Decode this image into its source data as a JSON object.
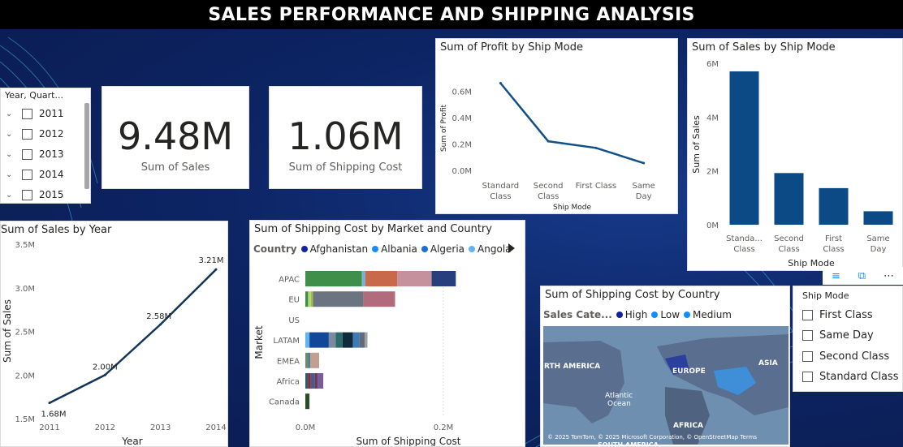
{
  "title": "SALES PERFORMANCE AND SHIPPING ANALYSIS",
  "year_slicer": {
    "header": "Year, Quart...",
    "items": [
      "2011",
      "2012",
      "2013",
      "2014",
      "2015"
    ]
  },
  "kpis": [
    {
      "value": "9.48M",
      "label": "Sum of Sales"
    },
    {
      "value": "1.06M",
      "label": "Sum of Shipping Cost"
    }
  ],
  "ship_mode_slicer": {
    "header": "Ship Mode",
    "items": [
      "First Class",
      "Same Day",
      "Second Class",
      "Standard Class"
    ]
  },
  "map": {
    "title": "Sum of Shipping Cost by Country",
    "legend_title": "Sales Cate...",
    "legend": [
      {
        "name": "High",
        "color": "#12239e"
      },
      {
        "name": "Low",
        "color": "#118dff"
      },
      {
        "name": "Medium",
        "color": "#118dff"
      }
    ],
    "labels": [
      "RTH AMERICA",
      "EUROPE",
      "ASIA",
      "Atlantic",
      "Ocean",
      "AFRICA",
      "SOUTH AMERICA"
    ],
    "attribution": "© 2025 TomTom, © 2025 Microsoft Corporation, © OpenStreetMap  Terms"
  },
  "chart_data": [
    {
      "type": "line",
      "title": "Sum of Profit by Ship Mode",
      "xlabel": "Ship Mode",
      "ylabel": "Sum of Profit",
      "categories": [
        [
          "Standard",
          "Class"
        ],
        [
          "Second",
          "Class"
        ],
        [
          "First Class"
        ],
        [
          "Same",
          "Day"
        ]
      ],
      "values": [
        0.66,
        0.22,
        0.17,
        0.055
      ],
      "yticks": [
        "0.0M",
        "0.2M",
        "0.4M",
        "0.6M"
      ],
      "ylim": [
        0,
        0.7
      ],
      "color": "#12508a"
    },
    {
      "type": "bar",
      "title": "Sum of Sales by Ship Mode",
      "xlabel": "Ship Mode",
      "ylabel": "Sum of Sales",
      "categories": [
        [
          "Standa...",
          "Class"
        ],
        [
          "Second",
          "Class"
        ],
        [
          "First",
          "Class"
        ],
        [
          "Same",
          "Day"
        ]
      ],
      "values": [
        5.7,
        1.92,
        1.36,
        0.5
      ],
      "yticks": [
        "0M",
        "2M",
        "4M",
        "6M"
      ],
      "ylim": [
        0,
        6
      ],
      "color": "#0c4a86"
    },
    {
      "type": "line",
      "title": "Sum of Sales by Year",
      "xlabel": "Year",
      "ylabel": "Sum of Sales",
      "categories": [
        "2011",
        "2012",
        "2013",
        "2014"
      ],
      "values": [
        1.68,
        2.0,
        2.58,
        3.21
      ],
      "data_labels": [
        "1.68M",
        "2.00M",
        "2.58M",
        "3.21M"
      ],
      "yticks": [
        "1.5M",
        "2.0M",
        "2.5M",
        "3.0M",
        "3.5M"
      ],
      "ylim": [
        1.5,
        3.5
      ],
      "color": "#12355b"
    },
    {
      "type": "bar",
      "orientation": "horizontal-stacked",
      "title": "Sum of Shipping Cost by Market and Country",
      "xlabel": "Sum of Shipping Cost",
      "ylabel": "Market",
      "legend_title": "Country",
      "legend": [
        {
          "name": "Afghanistan",
          "color": "#12239e"
        },
        {
          "name": "Albania",
          "color": "#118dff"
        },
        {
          "name": "Algeria",
          "color": "#1a6fd1"
        },
        {
          "name": "Angola",
          "color": "#5fb4ef"
        }
      ],
      "categories": [
        "APAC",
        "EU",
        "US",
        "LATAM",
        "EMEA",
        "Africa",
        "Canada"
      ],
      "xticks": [
        "0.0M",
        "0.2M"
      ],
      "xlim": [
        0,
        0.2
      ],
      "segments": [
        [
          {
            "v": 0.082,
            "c": "#3f8f4b"
          },
          {
            "v": 0.005,
            "c": "#7cb0d8"
          },
          {
            "v": 0.046,
            "c": "#c8694a"
          },
          {
            "v": 0.05,
            "c": "#c5919a"
          },
          {
            "v": 0.035,
            "c": "#27407d"
          }
        ],
        [
          {
            "v": 0.004,
            "c": "#3f8f4b"
          },
          {
            "v": 0.004,
            "c": "#b7d66e"
          },
          {
            "v": 0.003,
            "c": "#9bbf4a"
          },
          {
            "v": 0.073,
            "c": "#6b7480"
          },
          {
            "v": 0.046,
            "c": "#b26b7c"
          }
        ],
        [],
        [
          {
            "v": 0.006,
            "c": "#5fb4ef"
          },
          {
            "v": 0.028,
            "c": "#12479a"
          },
          {
            "v": 0.01,
            "c": "#7a8aa0"
          },
          {
            "v": 0.01,
            "c": "#2d6b6a"
          },
          {
            "v": 0.015,
            "c": "#0f2a3a"
          },
          {
            "v": 0.009,
            "c": "#3d7bb8"
          },
          {
            "v": 0.008,
            "c": "#5d6d80"
          },
          {
            "v": 0.004,
            "c": "#a0a0a0"
          }
        ],
        [
          {
            "v": 0.004,
            "c": "#6b8a70"
          },
          {
            "v": 0.003,
            "c": "#4a7a8a"
          },
          {
            "v": 0.013,
            "c": "#c0a090"
          }
        ],
        [
          {
            "v": 0.004,
            "c": "#2d5a6a"
          },
          {
            "v": 0.004,
            "c": "#8a2a3a"
          },
          {
            "v": 0.006,
            "c": "#4a5a8a"
          },
          {
            "v": 0.004,
            "c": "#6a3a5a"
          },
          {
            "v": 0.008,
            "c": "#7a5a9a"
          }
        ],
        [
          {
            "v": 0.006,
            "c": "#2a4a2a"
          }
        ]
      ]
    }
  ]
}
